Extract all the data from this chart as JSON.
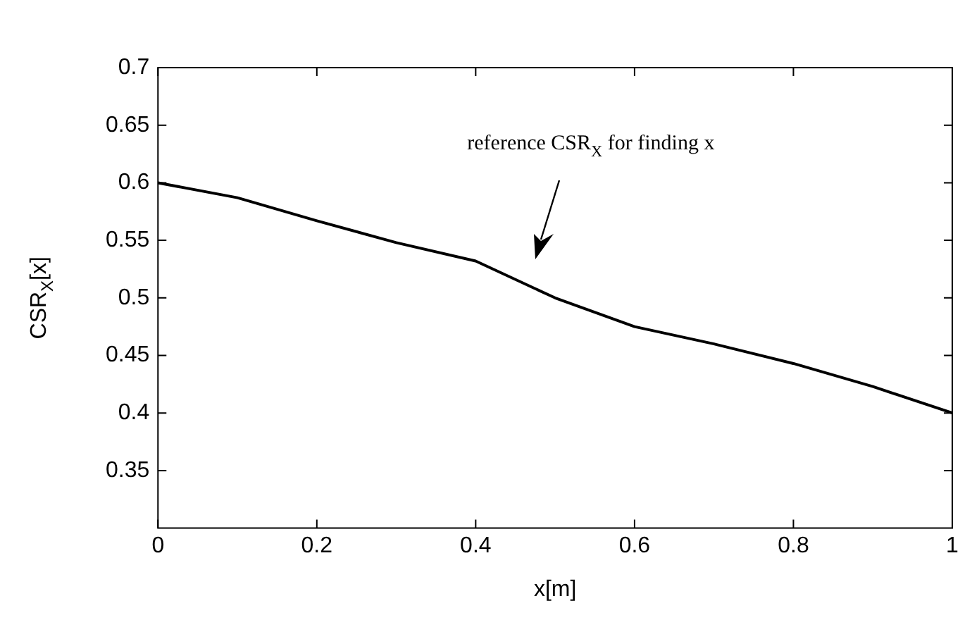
{
  "chart_data": {
    "type": "line",
    "xlabel": "x[m]",
    "ylabel": "CSR$_{X}$[x]",
    "x": [
      0,
      0.1,
      0.2,
      0.3,
      0.4,
      0.5,
      0.6,
      0.7,
      0.8,
      0.9,
      1
    ],
    "series": [
      {
        "color": "#000000",
        "values": [
          0.6,
          0.587,
          0.567,
          0.548,
          0.532,
          0.5,
          0.475,
          0.46,
          0.443,
          0.423,
          0.4
        ]
      }
    ],
    "xlim": [
      0,
      1
    ],
    "xticks": [
      0,
      0.2,
      0.4,
      0.6,
      0.8,
      1
    ],
    "ylim": [
      0.3,
      0.7
    ],
    "yticks": [
      0.35,
      0.4,
      0.45,
      0.5,
      0.55,
      0.6,
      0.65,
      0.7
    ],
    "annotations": [
      "reference CSR$_{X}$ for finding x"
    ],
    "legend": false,
    "marker": "none",
    "line_style": "solid"
  }
}
